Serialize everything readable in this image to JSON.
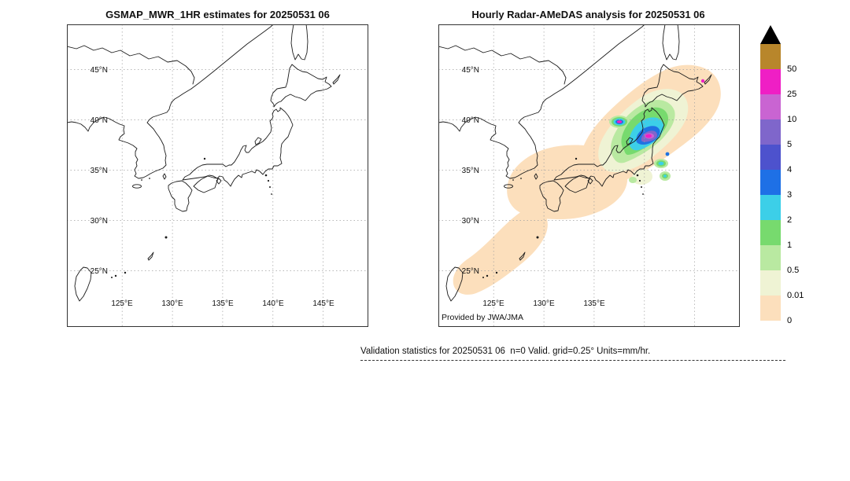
{
  "figure": {
    "caption": "Validation statistics for 20250531 06  n=0 Valid. grid=0.25° Units=mm/hr."
  },
  "panels": [
    {
      "title": "GSMAP_MWR_1HR estimates for 20250531 06",
      "lat_ticks": [
        "45°N",
        "40°N",
        "35°N",
        "30°N",
        "25°N"
      ],
      "lon_ticks": [
        "125°E",
        "130°E",
        "135°E",
        "140°E",
        "145°E"
      ]
    },
    {
      "title": "Hourly Radar-AMeDAS analysis for 20250531 06",
      "lat_ticks": [
        "45°N",
        "40°N",
        "35°N",
        "30°N",
        "25°N"
      ],
      "lon_ticks": [
        "125°E",
        "130°E",
        "135°E"
      ],
      "credit": "Provided by JWA/JMA"
    }
  ],
  "colorbar": {
    "labels_top_to_bottom": [
      "50",
      "25",
      "10",
      "5",
      "4",
      "3",
      "2",
      "1",
      "0.5",
      "0.01",
      "0"
    ],
    "segments_top_to_bottom": [
      {
        "range": "> 50",
        "color": "#b8862b"
      },
      {
        "range": "25 - 50",
        "color": "#ef1fc5"
      },
      {
        "range": "10 - 25",
        "color": "#c964d2"
      },
      {
        "range": "5 - 10",
        "color": "#7f66cb"
      },
      {
        "range": "4 - 5",
        "color": "#4d52cd"
      },
      {
        "range": "3 - 4",
        "color": "#1e70e6"
      },
      {
        "range": "2 - 3",
        "color": "#3ccfe8"
      },
      {
        "range": "1 - 2",
        "color": "#77da6e"
      },
      {
        "range": "0.5 - 1",
        "color": "#b9e9a1"
      },
      {
        "range": "0.01 - 0.5",
        "color": "#eff3d4"
      },
      {
        "range": "0 - 0.01",
        "color": "#fcdfbc"
      }
    ],
    "overflow_marker": "black-triangle"
  },
  "chart_data": {
    "type": "heatmap",
    "units": "mm/hr",
    "grid_resolution": "0.25°",
    "valid_time": "20250531 06",
    "n": 0,
    "map_extent": {
      "lon_ticks_deg_e": [
        125,
        130,
        135,
        140,
        145
      ],
      "lat_ticks_deg_n": [
        45,
        40,
        35,
        30,
        25
      ]
    },
    "gridlines": "dotted gray, every 5 degrees",
    "legend_position": "right",
    "panels": [
      {
        "title": "GSMAP_MWR_1HR estimates for 20250531 06",
        "content": "blank coastline map of Japan region, no precipitation estimates plotted (n=0)"
      },
      {
        "title": "Hourly Radar-AMeDAS analysis for 20250531 06",
        "credit": "Provided by JWA/JMA",
        "content": "shaded hourly precipitation analysis",
        "regions": [
          {
            "area": "Ryukyu island arc (~24-30N, 123-130E)",
            "value_mm_hr": "0.01-0.5"
          },
          {
            "area": "Kyushu / Shikoku / western Honshu (~31-36N, 129-137E)",
            "value_mm_hr": "0.01-0.5"
          },
          {
            "area": "central-eastern Honshu through southern Hokkaido (~34-45N, 134-147E)",
            "value_mm_hr": "0.01-1"
          },
          {
            "area": "Chubu-Tohoku interior (~36-40N, 137-141E)",
            "value_mm_hr": "1-5"
          },
          {
            "area": "heavy cells near Niigata/Fukushima (~37-38.5N, 139-141E)",
            "value_mm_hr": "5-50"
          },
          {
            "area": "streak near Sado island (~38.5N, 137.5-139.5E)",
            "value_mm_hr": "10-50"
          },
          {
            "area": "isolated cell, eastern Hokkaido (~44N, 145.5E)",
            "value_mm_hr": "25-50"
          }
        ]
      }
    ],
    "colorbar_levels": [
      0,
      0.01,
      0.5,
      1,
      2,
      3,
      4,
      5,
      10,
      25,
      50
    ],
    "colorbar_colors_bottom_to_top": [
      "#fcdfbc",
      "#eff3d4",
      "#b9e9a1",
      "#77da6e",
      "#3ccfe8",
      "#1e70e6",
      "#4d52cd",
      "#7f66cb",
      "#c964d2",
      "#ef1fc5",
      "#b8862b"
    ]
  }
}
